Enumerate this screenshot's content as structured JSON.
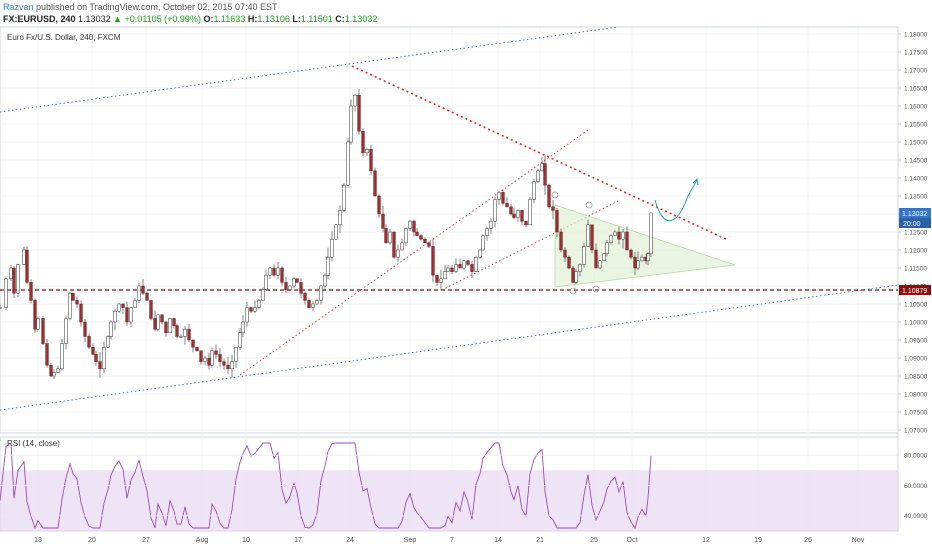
{
  "header": {
    "author": "Razvan",
    "published_text": "published on TradingView.com, October 02, 2015 07:40 EST",
    "symbol": "FX:EURUSD, 240",
    "last": "1.13032",
    "change": "+0.01105 (+0.99%)",
    "o_label": "O:",
    "o": "1.11633",
    "h_label": "H:",
    "h": "1.13106",
    "l_label": "L:",
    "l": "1.11501",
    "c_label": "C:",
    "c": "1.13032"
  },
  "chart_data": {
    "type": "candlestick",
    "title": "Euro Fx/U.S. Dollar, 240, FXCM",
    "ylim": [
      1.07,
      1.18
    ],
    "y_ticks": [
      "1.18000",
      "1.17500",
      "1.17000",
      "1.16500",
      "1.16000",
      "1.15500",
      "1.15000",
      "1.14500",
      "1.14000",
      "1.13500",
      "1.13000",
      "1.12500",
      "1.12000",
      "1.11500",
      "1.11000",
      "1.10500",
      "1.10000",
      "1.09500",
      "1.09000",
      "1.08500",
      "1.08000",
      "1.07500",
      "1.07000"
    ],
    "x_ticks": [
      "13",
      "20",
      "27",
      "Aug",
      "10",
      "17",
      "24",
      "Sep",
      "7",
      "14",
      "21",
      "25",
      "Oct",
      "12",
      "19",
      "26",
      "Nov"
    ],
    "price_labels": {
      "last": "1.13032",
      "countdown": "20:00",
      "horizontal_level": "1.10879"
    },
    "close_path": [
      [
        0,
        1.104
      ],
      [
        6,
        1.112
      ],
      [
        11,
        1.115
      ],
      [
        14,
        1.108
      ],
      [
        18,
        1.116
      ],
      [
        24,
        1.12
      ],
      [
        27,
        1.111
      ],
      [
        31,
        1.106
      ],
      [
        35,
        1.098
      ],
      [
        38,
        1.101
      ],
      [
        43,
        1.094
      ],
      [
        47,
        1.088
      ],
      [
        51,
        1.085
      ],
      [
        54,
        1.086
      ],
      [
        58,
        1.087
      ],
      [
        62,
        1.094
      ],
      [
        66,
        1.101
      ],
      [
        70,
        1.108
      ],
      [
        73,
        1.106
      ],
      [
        77,
        1.105
      ],
      [
        81,
        1.1
      ],
      [
        85,
        1.096
      ],
      [
        89,
        1.093
      ],
      [
        93,
        1.091
      ],
      [
        96,
        1.089
      ],
      [
        100,
        1.087
      ],
      [
        104,
        1.093
      ],
      [
        108,
        1.096
      ],
      [
        111,
        1.1
      ],
      [
        115,
        1.103
      ],
      [
        119,
        1.105
      ],
      [
        123,
        1.104
      ],
      [
        127,
        1.1
      ],
      [
        131,
        1.104
      ],
      [
        135,
        1.106
      ],
      [
        139,
        1.11
      ],
      [
        143,
        1.108
      ],
      [
        147,
        1.106
      ],
      [
        151,
        1.101
      ],
      [
        155,
        1.098
      ],
      [
        158,
        1.102
      ],
      [
        162,
        1.1
      ],
      [
        166,
        1.097
      ],
      [
        170,
        1.101
      ],
      [
        174,
        1.099
      ],
      [
        177,
        1.096
      ],
      [
        181,
        1.096
      ],
      [
        185,
        1.098
      ],
      [
        189,
        1.095
      ],
      [
        193,
        1.093
      ],
      [
        197,
        1.092
      ],
      [
        201,
        1.089
      ],
      [
        205,
        1.09
      ],
      [
        209,
        1.088
      ],
      [
        212,
        1.092
      ],
      [
        216,
        1.091
      ],
      [
        220,
        1.089
      ],
      [
        224,
        1.088
      ],
      [
        228,
        1.087
      ],
      [
        232,
        1.089
      ],
      [
        236,
        1.093
      ],
      [
        240,
        1.097
      ],
      [
        243,
        1.1
      ],
      [
        247,
        1.104
      ],
      [
        251,
        1.103
      ],
      [
        255,
        1.104
      ],
      [
        259,
        1.106
      ],
      [
        263,
        1.109
      ],
      [
        266,
        1.113
      ],
      [
        270,
        1.115
      ],
      [
        274,
        1.113
      ],
      [
        278,
        1.115
      ],
      [
        282,
        1.111
      ],
      [
        286,
        1.109
      ],
      [
        290,
        1.11
      ],
      [
        294,
        1.112
      ],
      [
        297,
        1.111
      ],
      [
        301,
        1.108
      ],
      [
        305,
        1.106
      ],
      [
        309,
        1.104
      ],
      [
        313,
        1.105
      ],
      [
        317,
        1.106
      ],
      [
        321,
        1.11
      ],
      [
        325,
        1.113
      ],
      [
        328,
        1.118
      ],
      [
        332,
        1.123
      ],
      [
        336,
        1.127
      ],
      [
        340,
        1.131
      ],
      [
        344,
        1.138
      ],
      [
        348,
        1.15
      ],
      [
        351,
        1.16
      ],
      [
        355,
        1.163
      ],
      [
        359,
        1.153
      ],
      [
        363,
        1.147
      ],
      [
        367,
        1.148
      ],
      [
        371,
        1.142
      ],
      [
        375,
        1.135
      ],
      [
        379,
        1.13
      ],
      [
        383,
        1.126
      ],
      [
        386,
        1.122
      ],
      [
        390,
        1.125
      ],
      [
        394,
        1.118
      ],
      [
        398,
        1.12
      ],
      [
        402,
        1.122
      ],
      [
        406,
        1.126
      ],
      [
        410,
        1.128
      ],
      [
        414,
        1.125
      ],
      [
        417,
        1.124
      ],
      [
        421,
        1.123
      ],
      [
        425,
        1.122
      ],
      [
        429,
        1.121
      ],
      [
        433,
        1.113
      ],
      [
        437,
        1.111
      ],
      [
        441,
        1.112
      ],
      [
        445,
        1.114
      ],
      [
        448,
        1.115
      ],
      [
        452,
        1.114
      ],
      [
        456,
        1.116
      ],
      [
        460,
        1.115
      ],
      [
        464,
        1.117
      ],
      [
        468,
        1.116
      ],
      [
        472,
        1.114
      ],
      [
        476,
        1.118
      ],
      [
        480,
        1.12
      ],
      [
        483,
        1.124
      ],
      [
        487,
        1.126
      ],
      [
        491,
        1.128
      ],
      [
        495,
        1.134
      ],
      [
        499,
        1.136
      ],
      [
        503,
        1.133
      ],
      [
        507,
        1.132
      ],
      [
        511,
        1.13
      ],
      [
        514,
        1.129
      ],
      [
        518,
        1.131
      ],
      [
        522,
        1.128
      ],
      [
        526,
        1.127
      ],
      [
        530,
        1.134
      ],
      [
        534,
        1.139
      ],
      [
        538,
        1.142
      ],
      [
        542,
        1.144
      ],
      [
        545,
        1.138
      ],
      [
        549,
        1.132
      ],
      [
        553,
        1.131
      ],
      [
        557,
        1.125
      ],
      [
        561,
        1.12
      ],
      [
        565,
        1.118
      ],
      [
        569,
        1.115
      ],
      [
        573,
        1.111
      ],
      [
        576,
        1.114
      ],
      [
        580,
        1.116
      ],
      [
        584,
        1.121
      ],
      [
        588,
        1.127
      ],
      [
        592,
        1.12
      ],
      [
        596,
        1.115
      ],
      [
        600,
        1.117
      ],
      [
        604,
        1.119
      ],
      [
        607,
        1.122
      ],
      [
        611,
        1.124
      ],
      [
        615,
        1.125
      ],
      [
        619,
        1.123
      ],
      [
        623,
        1.125
      ],
      [
        627,
        1.12
      ],
      [
        631,
        1.118
      ],
      [
        635,
        1.115
      ],
      [
        638,
        1.117
      ],
      [
        642,
        1.118
      ],
      [
        646,
        1.117
      ],
      [
        648,
        1.119
      ],
      [
        651,
        1.1303
      ]
    ],
    "rsi": {
      "label": "RSI (14, close)",
      "ylim": [
        30,
        90
      ],
      "y_ticks": [
        "80.0000",
        "60.0000",
        "40.0000"
      ],
      "band": [
        30,
        70
      ]
    }
  }
}
